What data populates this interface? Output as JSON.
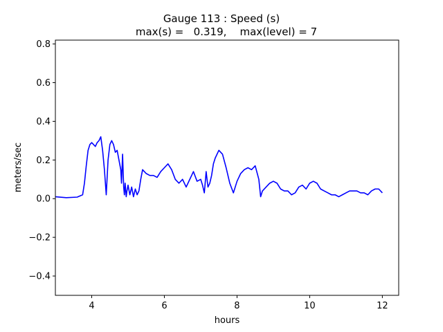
{
  "chart_data": {
    "type": "line",
    "title": "Gauge 113 : Speed (s)",
    "subtitle": "max(s) =   0.319,    max(level) = 7",
    "xlabel": "hours",
    "ylabel": "meters/sec",
    "xlim": [
      3.0,
      12.45
    ],
    "ylim": [
      -0.5,
      0.82
    ],
    "xticks": [
      4,
      6,
      8,
      10,
      12
    ],
    "yticks": [
      -0.4,
      -0.2,
      0.0,
      0.2,
      0.4,
      0.6,
      0.8
    ],
    "xtick_labels": [
      "4",
      "6",
      "8",
      "10",
      "12"
    ],
    "ytick_labels": [
      "−0.4",
      "−0.2",
      "0.0",
      "0.2",
      "0.4",
      "0.6",
      "0.8"
    ],
    "grid": false,
    "series": [
      {
        "color": "#0000ff",
        "x": [
          3.0,
          3.3,
          3.6,
          3.75,
          3.8,
          3.85,
          3.9,
          3.95,
          4.0,
          4.05,
          4.1,
          4.15,
          4.2,
          4.25,
          4.3,
          4.35,
          4.4,
          4.45,
          4.5,
          4.55,
          4.6,
          4.65,
          4.7,
          4.75,
          4.8,
          4.82,
          4.85,
          4.88,
          4.9,
          4.92,
          4.95,
          4.97,
          5.0,
          5.05,
          5.1,
          5.15,
          5.2,
          5.25,
          5.3,
          5.35,
          5.4,
          5.5,
          5.6,
          5.7,
          5.8,
          5.9,
          6.0,
          6.1,
          6.2,
          6.3,
          6.4,
          6.5,
          6.6,
          6.7,
          6.8,
          6.9,
          7.0,
          7.05,
          7.1,
          7.15,
          7.2,
          7.25,
          7.3,
          7.35,
          7.4,
          7.5,
          7.6,
          7.7,
          7.8,
          7.9,
          8.0,
          8.1,
          8.2,
          8.3,
          8.4,
          8.5,
          8.6,
          8.65,
          8.7,
          8.8,
          8.9,
          9.0,
          9.1,
          9.2,
          9.3,
          9.4,
          9.5,
          9.6,
          9.7,
          9.8,
          9.9,
          10.0,
          10.1,
          10.2,
          10.3,
          10.4,
          10.5,
          10.6,
          10.7,
          10.8,
          10.9,
          11.0,
          11.1,
          11.2,
          11.3,
          11.4,
          11.5,
          11.6,
          11.7,
          11.8,
          11.9,
          12.0
        ],
        "y": [
          0.01,
          0.005,
          0.008,
          0.02,
          0.08,
          0.17,
          0.25,
          0.28,
          0.29,
          0.28,
          0.27,
          0.29,
          0.3,
          0.32,
          0.25,
          0.15,
          0.02,
          0.2,
          0.28,
          0.3,
          0.28,
          0.24,
          0.25,
          0.2,
          0.15,
          0.08,
          0.23,
          0.06,
          0.02,
          0.08,
          0.01,
          0.04,
          0.07,
          0.02,
          0.06,
          0.01,
          0.05,
          0.02,
          0.04,
          0.1,
          0.15,
          0.13,
          0.12,
          0.12,
          0.11,
          0.14,
          0.16,
          0.18,
          0.15,
          0.1,
          0.08,
          0.1,
          0.06,
          0.1,
          0.14,
          0.09,
          0.1,
          0.07,
          0.03,
          0.14,
          0.06,
          0.08,
          0.12,
          0.18,
          0.21,
          0.25,
          0.23,
          0.16,
          0.08,
          0.03,
          0.09,
          0.13,
          0.15,
          0.16,
          0.15,
          0.17,
          0.1,
          0.01,
          0.04,
          0.06,
          0.08,
          0.09,
          0.08,
          0.05,
          0.04,
          0.04,
          0.02,
          0.03,
          0.06,
          0.07,
          0.05,
          0.08,
          0.09,
          0.08,
          0.05,
          0.04,
          0.03,
          0.02,
          0.02,
          0.01,
          0.02,
          0.03,
          0.04,
          0.04,
          0.04,
          0.03,
          0.03,
          0.02,
          0.04,
          0.05,
          0.05,
          0.03
        ]
      }
    ]
  }
}
